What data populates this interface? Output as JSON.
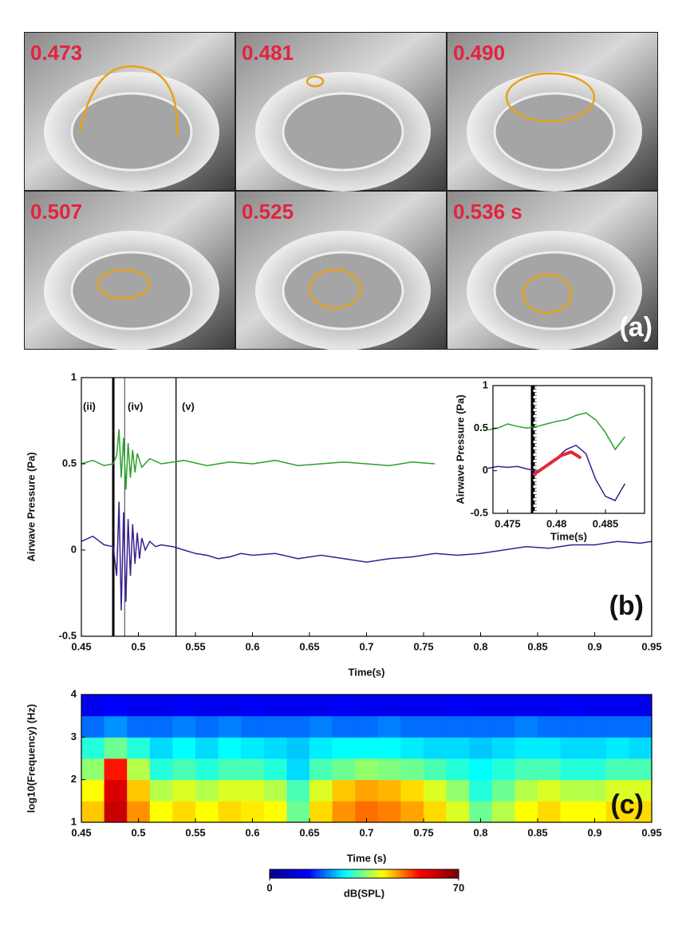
{
  "panel_a": {
    "label": "(a)",
    "frames": [
      "0.473",
      "0.481",
      "0.490",
      "0.507",
      "0.525",
      "0.536 s"
    ]
  },
  "chart_data": [
    {
      "type": "line",
      "panel_label": "(b)",
      "x_label": "Time(s)",
      "y_label": "Airwave Pressure (Pa)",
      "xlim": [
        0.45,
        0.95
      ],
      "ylim": [
        -0.5,
        1
      ],
      "xticks": [
        0.45,
        0.5,
        0.55,
        0.6,
        0.65,
        0.7,
        0.75,
        0.8,
        0.85,
        0.9,
        0.95
      ],
      "yticks": [
        -0.5,
        0,
        0.5,
        1
      ],
      "annotations": [
        "(ii)",
        "(iv)",
        "(v)"
      ],
      "vlines": [
        {
          "x": 0.478,
          "style": "thick",
          "color": "#000000"
        },
        {
          "x": 0.488,
          "style": "thin",
          "color": "#666666"
        },
        {
          "x": 0.533,
          "style": "thin",
          "color": "#000000"
        }
      ],
      "series": [
        {
          "color": "#2ca02c",
          "x": [
            0.45,
            0.46,
            0.47,
            0.478,
            0.481,
            0.483,
            0.485,
            0.487,
            0.489,
            0.491,
            0.493,
            0.495,
            0.497,
            0.499,
            0.503,
            0.51,
            0.52,
            0.54,
            0.56,
            0.58,
            0.6,
            0.62,
            0.64,
            0.66,
            0.68,
            0.7,
            0.72,
            0.74,
            0.76
          ],
          "values": [
            0.5,
            0.52,
            0.49,
            0.5,
            0.55,
            0.7,
            0.42,
            0.65,
            0.35,
            0.62,
            0.42,
            0.58,
            0.45,
            0.56,
            0.48,
            0.53,
            0.5,
            0.52,
            0.49,
            0.51,
            0.5,
            0.52,
            0.49,
            0.5,
            0.51,
            0.5,
            0.49,
            0.51,
            0.5
          ]
        },
        {
          "color": "#3a1f8f",
          "x": [
            0.45,
            0.46,
            0.47,
            0.478,
            0.481,
            0.483,
            0.485,
            0.487,
            0.489,
            0.491,
            0.493,
            0.495,
            0.497,
            0.499,
            0.501,
            0.503,
            0.506,
            0.51,
            0.515,
            0.52,
            0.53,
            0.54,
            0.55,
            0.56,
            0.57,
            0.58,
            0.59,
            0.6,
            0.62,
            0.64,
            0.66,
            0.68,
            0.7,
            0.72,
            0.74,
            0.76,
            0.78,
            0.8,
            0.82,
            0.84,
            0.86,
            0.88,
            0.9,
            0.92,
            0.94,
            0.95
          ],
          "values": [
            0.05,
            0.08,
            0.03,
            0.02,
            -0.15,
            0.28,
            -0.35,
            0.22,
            -0.3,
            0.18,
            -0.15,
            0.15,
            -0.08,
            0.1,
            -0.05,
            0.07,
            0.0,
            0.05,
            0.02,
            0.03,
            0.02,
            0.0,
            -0.02,
            -0.03,
            -0.05,
            -0.04,
            -0.02,
            -0.03,
            -0.02,
            -0.05,
            -0.03,
            -0.05,
            -0.07,
            -0.05,
            -0.04,
            -0.02,
            -0.03,
            -0.02,
            0.0,
            0.02,
            0.01,
            0.03,
            0.03,
            0.05,
            0.04,
            0.05
          ]
        }
      ]
    },
    {
      "type": "line",
      "x_label": "Time(s)",
      "y_label": "Airwave Pressure (Pa)",
      "xlim": [
        0.4735,
        0.489
      ],
      "ylim": [
        -0.5,
        1
      ],
      "xticks": [
        0.475,
        0.48,
        0.485
      ],
      "yticks": [
        -0.5,
        0,
        0.5,
        1
      ],
      "vlines": [
        {
          "x": 0.4775,
          "style": "thick",
          "color": "#000000"
        },
        {
          "x": 0.4777,
          "style": "dashed",
          "color": "#000000"
        },
        {
          "x": 0.4779,
          "style": "dotted",
          "color": "#000000"
        }
      ],
      "series": [
        {
          "color": "#2ca02c",
          "x": [
            0.473,
            0.474,
            0.475,
            0.476,
            0.477,
            0.478,
            0.479,
            0.48,
            0.481,
            0.482,
            0.483,
            0.484,
            0.485,
            0.486,
            0.487
          ],
          "values": [
            0.48,
            0.5,
            0.55,
            0.52,
            0.5,
            0.52,
            0.55,
            0.58,
            0.6,
            0.65,
            0.68,
            0.6,
            0.45,
            0.25,
            0.4
          ]
        },
        {
          "color": "#3a1f8f",
          "x": [
            0.473,
            0.474,
            0.475,
            0.476,
            0.477,
            0.478,
            0.479,
            0.48,
            0.481,
            0.482,
            0.483,
            0.484,
            0.485,
            0.486,
            0.487
          ],
          "values": [
            0.03,
            0.05,
            0.04,
            0.05,
            0.02,
            0.0,
            0.05,
            0.15,
            0.25,
            0.3,
            0.2,
            -0.1,
            -0.3,
            -0.35,
            -0.15
          ]
        },
        {
          "color": "#e0283c",
          "x": [
            0.4776,
            0.4785,
            0.4795,
            0.4805,
            0.4815,
            0.4825
          ],
          "values": [
            -0.05,
            0.02,
            0.1,
            0.18,
            0.22,
            0.15
          ]
        }
      ]
    },
    {
      "type": "heatmap",
      "panel_label": "(c)",
      "x_label": "Time (s)",
      "y_label": "log10(Frequency) (Hz)",
      "xlim": [
        0.45,
        0.95
      ],
      "ylim": [
        1,
        4
      ],
      "xticks": [
        0.45,
        0.5,
        0.55,
        0.6,
        0.65,
        0.7,
        0.75,
        0.8,
        0.85,
        0.9,
        0.95
      ],
      "yticks": [
        1,
        2,
        3,
        4
      ],
      "colormap": [
        "#00008f",
        "#0000ff",
        "#00ffff",
        "#ffff00",
        "#ff0000",
        "#800000"
      ],
      "colorbar": {
        "label": "dB(SPL)",
        "lim": [
          0,
          70
        ],
        "ticks": [
          0,
          70
        ]
      },
      "x": [
        0.46,
        0.48,
        0.5,
        0.52,
        0.54,
        0.56,
        0.58,
        0.6,
        0.62,
        0.64,
        0.66,
        0.68,
        0.7,
        0.72,
        0.74,
        0.76,
        0.78,
        0.8,
        0.82,
        0.84,
        0.86,
        0.88,
        0.9,
        0.92,
        0.94
      ],
      "y": [
        1.25,
        1.75,
        2.25,
        2.75,
        3.25,
        3.75
      ],
      "z": [
        [
          45,
          62,
          48,
          42,
          44,
          42,
          44,
          43,
          42,
          34,
          44,
          48,
          50,
          49,
          47,
          44,
          40,
          34,
          38,
          42,
          44,
          42,
          42,
          44,
          44
        ],
        [
          42,
          60,
          45,
          38,
          40,
          38,
          40,
          40,
          38,
          32,
          40,
          45,
          47,
          46,
          44,
          40,
          36,
          30,
          34,
          38,
          40,
          38,
          38,
          40,
          40
        ],
        [
          36,
          55,
          38,
          30,
          32,
          30,
          32,
          32,
          30,
          26,
          32,
          34,
          36,
          35,
          34,
          32,
          30,
          28,
          30,
          32,
          32,
          30,
          30,
          32,
          32
        ],
        [
          30,
          34,
          30,
          26,
          28,
          26,
          28,
          27,
          26,
          25,
          27,
          28,
          28,
          28,
          27,
          26,
          26,
          25,
          26,
          27,
          27,
          26,
          26,
          27,
          26
        ],
        [
          20,
          22,
          20,
          20,
          21,
          20,
          21,
          20,
          20,
          20,
          21,
          20,
          20,
          21,
          20,
          20,
          20,
          20,
          20,
          21,
          20,
          20,
          20,
          20,
          20
        ],
        [
          12,
          14,
          12,
          12,
          13,
          12,
          12,
          13,
          12,
          12,
          12,
          13,
          12,
          12,
          12,
          12,
          13,
          12,
          12,
          12,
          12,
          13,
          12,
          12,
          12
        ]
      ]
    }
  ]
}
